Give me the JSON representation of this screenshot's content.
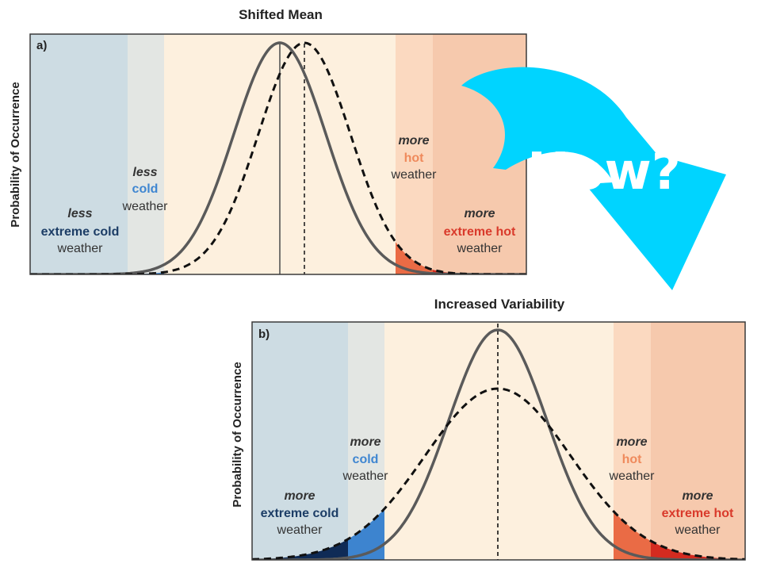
{
  "colors": {
    "extreme_cold_band": "#cddce3",
    "cold_band": "#e3e6e3",
    "neutral_band": "#fdf0de",
    "hot_band": "#fbd9c0",
    "extreme_hot_band": "#f6c9ad",
    "extreme_cold_fill": "#0f2b56",
    "cold_fill": "#3d84cf",
    "hot_fill": "#ea6b45",
    "extreme_hot_fill": "#d42b20",
    "cold_text": "#3f86d1",
    "extreme_cold_text": "#1c3d66",
    "hot_text": "#ef8a5c",
    "extreme_hot_text": "#d93a2b",
    "arrow": "#00d4ff"
  },
  "panel_a": {
    "title": "Shifted Mean",
    "label": "a)",
    "ylabel": "Probability of Occurrence",
    "extreme_cold": {
      "qualifier": "less",
      "kind": "extreme cold",
      "suffix": "weather"
    },
    "cold": {
      "qualifier": "less",
      "kind": "cold",
      "suffix": "weather"
    },
    "hot": {
      "qualifier": "more",
      "kind": "hot",
      "suffix": "weather"
    },
    "extreme_hot": {
      "qualifier": "more",
      "kind": "extreme hot",
      "suffix": "weather"
    }
  },
  "panel_b": {
    "title": "Increased Variability",
    "label": "b)",
    "ylabel": "Probability of Occurrence",
    "extreme_cold": {
      "qualifier": "more",
      "kind": "extreme cold",
      "suffix": "weather"
    },
    "cold": {
      "qualifier": "more",
      "kind": "cold",
      "suffix": "weather"
    },
    "hot": {
      "qualifier": "more",
      "kind": "hot",
      "suffix": "weather"
    },
    "extreme_hot": {
      "qualifier": "more",
      "kind": "extreme hot",
      "suffix": "weather"
    }
  },
  "callout": {
    "text": "How?",
    "icon": "curved-arrow-icon"
  }
}
